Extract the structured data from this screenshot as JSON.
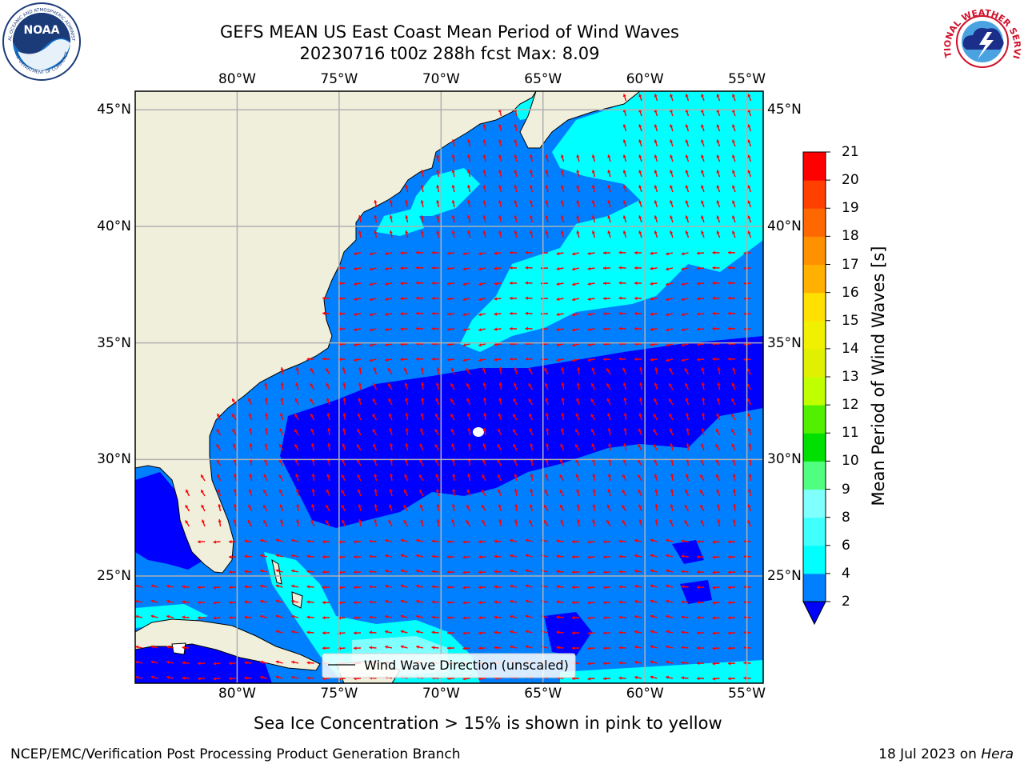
{
  "header": {
    "title_line1": "GEFS MEAN US East Coast Mean Period of Wind Waves",
    "title_line2": "20230716 t00z 288h fcst   Max: 8.09"
  },
  "logos": {
    "left": {
      "text": "NOAA",
      "ring_top": "NATIONAL OCEANIC AND ATMOSPHERIC ADMINISTRATION",
      "ring_bottom": "U.S. DEPARTMENT OF COMMERCE"
    },
    "right": {
      "ring_text": "NATIONAL WEATHER SERVICE"
    }
  },
  "map": {
    "lon_labels": [
      "80°W",
      "75°W",
      "70°W",
      "65°W",
      "60°W",
      "55°W"
    ],
    "lat_labels": [
      "45°N",
      "40°N",
      "35°N",
      "30°N",
      "25°N"
    ],
    "lon_values": [
      -80,
      -75,
      -70,
      -65,
      -60,
      -55
    ],
    "lat_values": [
      45,
      40,
      35,
      30,
      25
    ],
    "extent": {
      "lon_min": -85,
      "lon_max": -54.2,
      "lat_min": 20.4,
      "lat_max": 45.8
    },
    "legend_label": "Wind Wave Direction (unscaled)",
    "colors": {
      "land": "#efefdc",
      "ocean_2_4": "#0080ff",
      "ocean_below_2": "#0000ff",
      "ocean_4_6": "#00ffff",
      "ocean_6_8": "#80ffff",
      "arrow": "#ff0000",
      "grid": "#b0b0b0"
    }
  },
  "colorbar": {
    "label": "Mean Period of Wind Waves [s]",
    "ticks": [
      "2",
      "4",
      "6",
      "8",
      "9",
      "10",
      "11",
      "12",
      "13",
      "14",
      "15",
      "16",
      "17",
      "18",
      "19",
      "20",
      "21"
    ],
    "colors": [
      "#0080ff",
      "#00ffff",
      "#40ffff",
      "#80ffff",
      "#50ff80",
      "#00e000",
      "#50f000",
      "#c0ff00",
      "#e0f000",
      "#f0f000",
      "#ffe000",
      "#ffb000",
      "#ff9000",
      "#ff6800",
      "#ff4000",
      "#ff0000"
    ],
    "under_color": "#0000ff"
  },
  "note": "Sea Ice Concentration > 15% is shown in pink to yellow",
  "footer": {
    "left": "NCEP/EMC/Verification Post Processing Product Generation Branch",
    "right_date": "18 Jul 2023 on ",
    "right_machine": "Hera"
  }
}
